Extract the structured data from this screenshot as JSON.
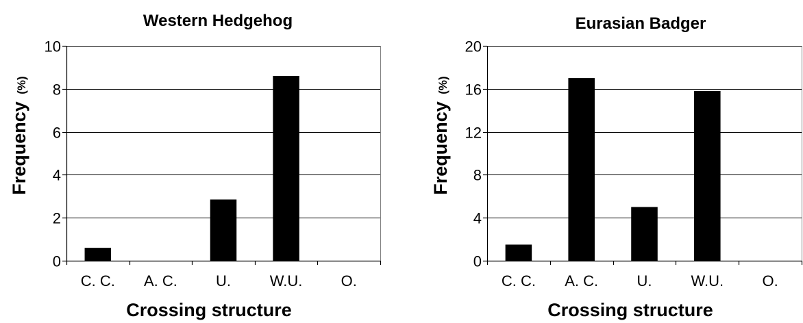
{
  "chart_data": [
    {
      "type": "bar",
      "title": "Western Hedgehog",
      "xlabel": "Crossing structure",
      "ylabel": "Frequency",
      "ylabel_unit": "(%)",
      "categories": [
        "C. C.",
        "A. C.",
        "U.",
        "W.U.",
        "O."
      ],
      "values": [
        0.6,
        0,
        2.85,
        8.6,
        0
      ],
      "ylim": [
        0,
        10
      ],
      "yticks": [
        0,
        2,
        4,
        6,
        8,
        10
      ],
      "ytick_labels": [
        "0",
        "2",
        "4",
        "6",
        "8",
        "10"
      ],
      "grid": true,
      "bar_color": "#000000"
    },
    {
      "type": "bar",
      "title": "Eurasian Badger",
      "xlabel": "Crossing structure",
      "ylabel": "Frequency",
      "ylabel_unit": "(%)",
      "categories": [
        "C. C.",
        "A. C.",
        "U.",
        "W.U.",
        "O."
      ],
      "values": [
        1.5,
        17,
        5,
        15.8,
        0
      ],
      "ylim": [
        0,
        20
      ],
      "yticks": [
        0,
        4,
        8,
        12,
        16,
        20
      ],
      "ytick_labels": [
        "0",
        "4",
        "8",
        "12",
        "16",
        "20"
      ],
      "grid": true,
      "bar_color": "#000000"
    }
  ]
}
